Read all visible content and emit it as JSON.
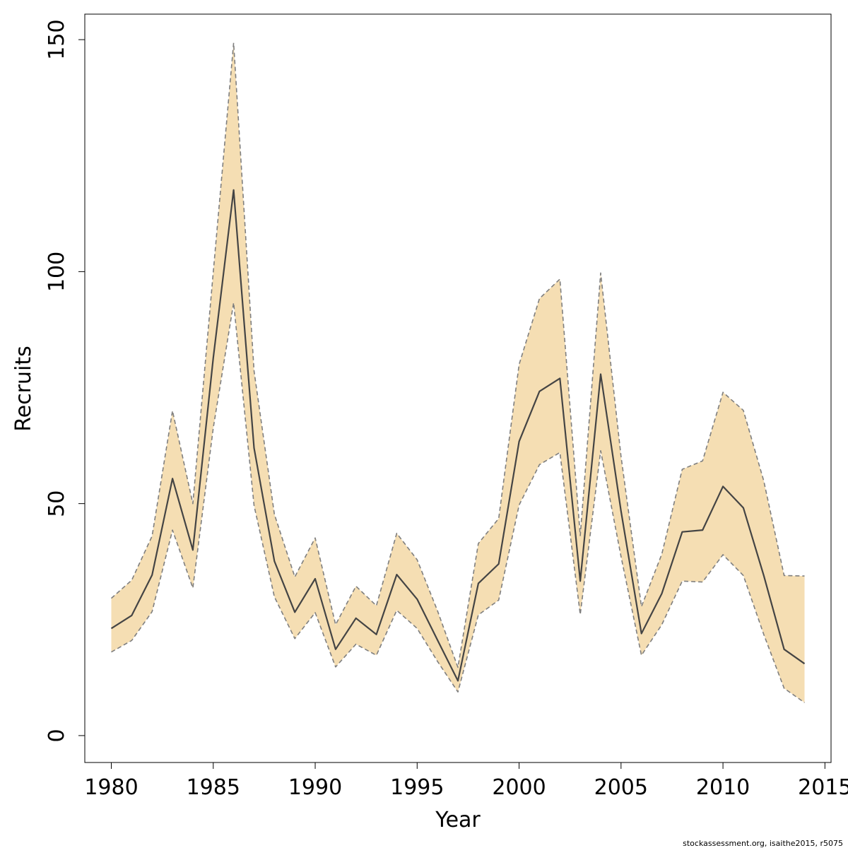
{
  "chart_data": {
    "type": "line",
    "xlabel": "Year",
    "ylabel": "Recruits",
    "xlim": [
      1978.7,
      2015.3
    ],
    "ylim": [
      -5.8,
      155.5
    ],
    "x_ticks": [
      1980,
      1985,
      1990,
      1995,
      2000,
      2005,
      2010,
      2015
    ],
    "y_ticks": [
      0,
      50,
      100,
      150
    ],
    "x_tick_labels": [
      "1980",
      "1985",
      "1990",
      "1995",
      "2000",
      "2005",
      "2010",
      "2015"
    ],
    "y_tick_labels": [
      "0",
      "50",
      "100",
      "150"
    ],
    "grid": false,
    "legend": "none",
    "x": [
      1980,
      1981,
      1982,
      1983,
      1984,
      1985,
      1986,
      1987,
      1988,
      1989,
      1990,
      1991,
      1992,
      1993,
      1994,
      1995,
      1996,
      1997,
      1998,
      1999,
      2000,
      2001,
      2002,
      2003,
      2004,
      2005,
      2006,
      2007,
      2008,
      2009,
      2010,
      2011,
      2012,
      2013,
      2014
    ],
    "series": [
      {
        "role": "estimate",
        "values": [
          23.1,
          25.9,
          34.6,
          55.4,
          40.0,
          81.4,
          117.6,
          62.0,
          37.6,
          26.6,
          33.8,
          18.6,
          25.3,
          21.8,
          34.7,
          29.4,
          20.6,
          11.8,
          32.8,
          37.0,
          63.4,
          74.2,
          77.0,
          33.3,
          77.9,
          48.4,
          22.0,
          30.6,
          43.9,
          44.3,
          53.7,
          49.1,
          34.5,
          18.6,
          15.5
        ]
      },
      {
        "role": "upper",
        "values": [
          29.6,
          33.5,
          43.0,
          70.0,
          50.0,
          99.9,
          149.3,
          78.6,
          47.7,
          34.2,
          42.6,
          23.9,
          32.2,
          28.0,
          43.6,
          37.9,
          26.9,
          14.7,
          41.4,
          46.8,
          80.0,
          94.2,
          98.4,
          43.1,
          99.7,
          60.2,
          27.8,
          39.1,
          57.4,
          59.2,
          74.0,
          70.1,
          54.9,
          34.5,
          34.4
        ]
      },
      {
        "role": "lower",
        "values": [
          18.0,
          20.5,
          26.7,
          44.3,
          31.8,
          66.3,
          93.3,
          49.6,
          29.9,
          20.9,
          26.5,
          14.8,
          19.7,
          17.3,
          27.0,
          23.1,
          16.0,
          9.4,
          26.0,
          29.2,
          49.7,
          58.4,
          61.0,
          26.1,
          61.4,
          38.6,
          17.3,
          23.9,
          33.3,
          33.1,
          39.0,
          34.5,
          21.8,
          10.2,
          7.1
        ]
      }
    ]
  },
  "colors": {
    "band_fill": "#f5deb3",
    "estimate_line": "#444444",
    "bound_line": "#7f7f7f"
  },
  "footer": {
    "text": "stockassessment.org, isaithe2015, r5075"
  }
}
